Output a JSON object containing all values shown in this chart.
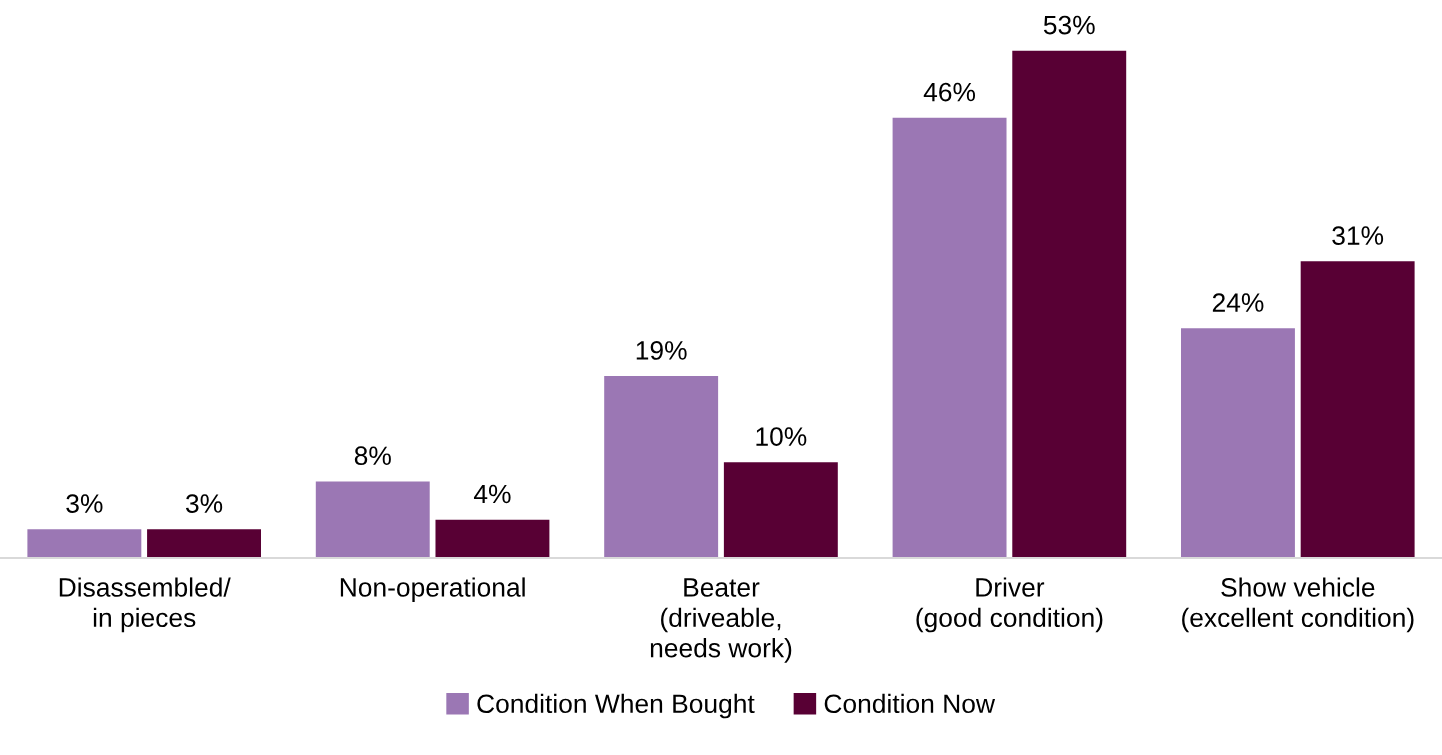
{
  "chart_data": {
    "type": "bar",
    "categories": [
      "Disassembled/\nin pieces",
      "Non-operational",
      "Beater\n(driveable,\nneeds work)",
      "Driver\n(good condition)",
      "Show vehicle\n(excellent condition)"
    ],
    "series": [
      {
        "name": "Condition When Bought",
        "color": "#9b77b4",
        "values": [
          3,
          8,
          19,
          46,
          24
        ],
        "value_labels": [
          "3%",
          "8%",
          "19%",
          "46%",
          "24%"
        ]
      },
      {
        "name": "Condition Now",
        "color": "#580034",
        "values": [
          3,
          4,
          10,
          53,
          31
        ],
        "value_labels": [
          "3%",
          "4%",
          "10%",
          "53%",
          "31%"
        ]
      }
    ],
    "legend": "bottom",
    "grid": false
  }
}
